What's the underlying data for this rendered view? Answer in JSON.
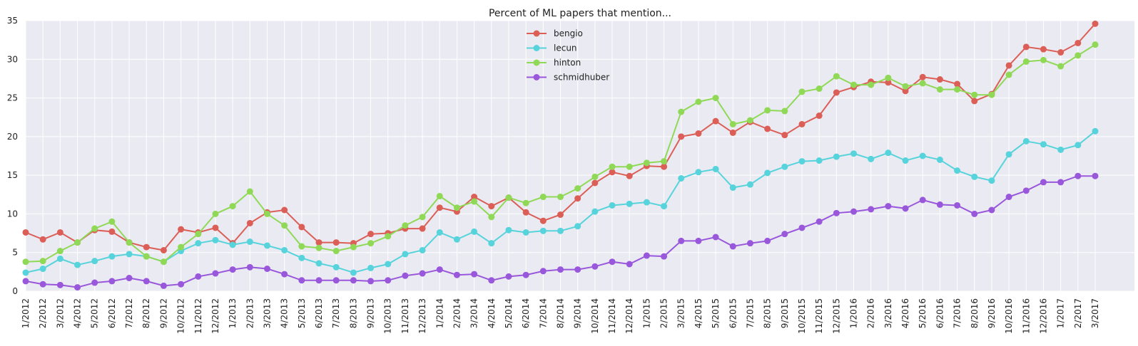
{
  "chart_data": {
    "type": "line",
    "title": "Percent of ML papers that mention...",
    "xlabel": "",
    "ylabel": "",
    "ylim": [
      0,
      35
    ],
    "yticks": [
      0,
      5,
      10,
      15,
      20,
      25,
      30,
      35
    ],
    "grid": true,
    "legend_position": "top-center",
    "categories": [
      "1/2012",
      "2/2012",
      "3/2012",
      "4/2012",
      "5/2012",
      "6/2012",
      "7/2012",
      "8/2012",
      "9/2012",
      "10/2012",
      "11/2012",
      "12/2012",
      "1/2013",
      "2/2013",
      "3/2013",
      "4/2013",
      "5/2013",
      "6/2013",
      "7/2013",
      "8/2013",
      "9/2013",
      "10/2013",
      "11/2013",
      "12/2013",
      "1/2014",
      "2/2014",
      "3/2014",
      "4/2014",
      "5/2014",
      "6/2014",
      "7/2014",
      "8/2014",
      "9/2014",
      "10/2014",
      "11/2014",
      "12/2014",
      "1/2015",
      "2/2015",
      "3/2015",
      "4/2015",
      "5/2015",
      "6/2015",
      "7/2015",
      "8/2015",
      "9/2015",
      "10/2015",
      "11/2015",
      "12/2015",
      "1/2016",
      "2/2016",
      "3/2016",
      "4/2016",
      "5/2016",
      "6/2016",
      "7/2016",
      "8/2016",
      "9/2016",
      "10/2016",
      "11/2016",
      "12/2016",
      "1/2017",
      "2/2017",
      "3/2017"
    ],
    "series": [
      {
        "name": "bengio",
        "color": "#db5f57",
        "values": [
          7.6,
          6.7,
          7.6,
          6.3,
          7.9,
          7.7,
          6.3,
          5.7,
          5.3,
          8.0,
          7.6,
          8.2,
          6.2,
          8.8,
          10.2,
          10.5,
          8.3,
          6.3,
          6.3,
          6.2,
          7.4,
          7.5,
          8.1,
          8.1,
          10.8,
          10.3,
          12.2,
          11.0,
          12.1,
          10.2,
          9.1,
          9.9,
          12.0,
          14.0,
          15.4,
          14.9,
          16.2,
          16.1,
          20.0,
          20.4,
          22.0,
          20.5,
          21.9,
          21.0,
          20.2,
          21.6,
          22.7,
          25.7,
          26.4,
          27.1,
          27.0,
          25.9,
          27.7,
          27.4,
          26.8,
          24.6,
          25.5,
          29.2,
          31.6,
          31.3,
          30.9,
          32.1,
          34.6
        ]
      },
      {
        "name": "lecun",
        "color": "#57d3db",
        "values": [
          2.4,
          2.9,
          4.2,
          3.4,
          3.9,
          4.5,
          4.8,
          4.5,
          3.8,
          5.2,
          6.2,
          6.6,
          6.0,
          6.4,
          5.9,
          5.3,
          4.3,
          3.6,
          3.1,
          2.4,
          3.0,
          3.5,
          4.8,
          5.3,
          7.6,
          6.7,
          7.7,
          6.2,
          7.9,
          7.6,
          7.8,
          7.8,
          8.4,
          10.3,
          11.1,
          11.3,
          11.5,
          11.0,
          14.6,
          15.4,
          15.8,
          13.4,
          13.8,
          15.3,
          16.1,
          16.8,
          16.9,
          17.4,
          17.8,
          17.1,
          17.9,
          16.9,
          17.5,
          17.0,
          15.6,
          14.8,
          14.3,
          17.7,
          19.4,
          19.0,
          18.3,
          18.9,
          20.7
        ]
      },
      {
        "name": "hinton",
        "color": "#8fd957",
        "values": [
          3.8,
          3.9,
          5.2,
          6.3,
          8.1,
          9.0,
          6.3,
          4.5,
          3.8,
          5.7,
          7.4,
          10.0,
          11.0,
          12.9,
          10.0,
          8.5,
          5.8,
          5.6,
          5.2,
          5.7,
          6.2,
          7.1,
          8.5,
          9.6,
          12.3,
          10.8,
          11.6,
          9.6,
          12.1,
          11.4,
          12.2,
          12.2,
          13.3,
          14.8,
          16.1,
          16.1,
          16.6,
          16.8,
          23.2,
          24.5,
          25.0,
          21.6,
          22.1,
          23.4,
          23.3,
          25.8,
          26.2,
          27.8,
          26.7,
          26.7,
          27.6,
          26.5,
          26.9,
          26.1,
          26.1,
          25.4,
          25.4,
          28.0,
          29.7,
          29.9,
          29.1,
          30.5,
          31.9
        ]
      },
      {
        "name": "schmidhuber",
        "color": "#9957db",
        "values": [
          1.3,
          0.9,
          0.8,
          0.5,
          1.1,
          1.3,
          1.7,
          1.3,
          0.7,
          0.9,
          1.9,
          2.3,
          2.8,
          3.1,
          2.9,
          2.2,
          1.4,
          1.4,
          1.4,
          1.4,
          1.3,
          1.4,
          2.0,
          2.3,
          2.8,
          2.1,
          2.2,
          1.4,
          1.9,
          2.1,
          2.6,
          2.8,
          2.8,
          3.2,
          3.8,
          3.5,
          4.6,
          4.5,
          6.5,
          6.5,
          7.0,
          5.8,
          6.2,
          6.5,
          7.4,
          8.2,
          9.0,
          10.1,
          10.3,
          10.6,
          11.0,
          10.7,
          11.8,
          11.2,
          11.1,
          10.0,
          10.5,
          12.2,
          13.0,
          14.1,
          14.1,
          14.9,
          14.9
        ]
      }
    ]
  }
}
